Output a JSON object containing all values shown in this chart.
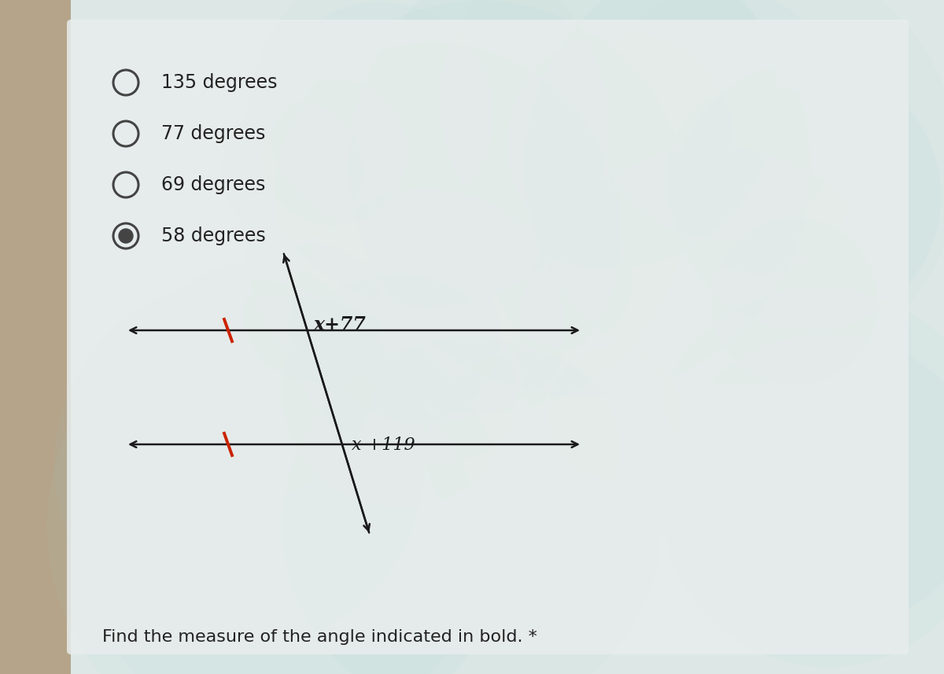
{
  "title": "Find the measure of the angle indicated in bold. *",
  "title_fontsize": 16,
  "title_color": "#222222",
  "bg_left_color": "#c8b89a",
  "bg_right_color": "#c8dde0",
  "panel_color": "#dce8e8",
  "line_color": "#1a1a1a",
  "tick_color": "#cc2200",
  "label1": "x +119",
  "label2": "x+77",
  "label_color": "#1a1a1a",
  "options": [
    "58 degrees",
    "69 degrees",
    "77 degrees",
    "135 degrees"
  ],
  "selected_index": 0,
  "option_color": "#222222",
  "option_fontsize": 17,
  "radio_color": "#444444"
}
